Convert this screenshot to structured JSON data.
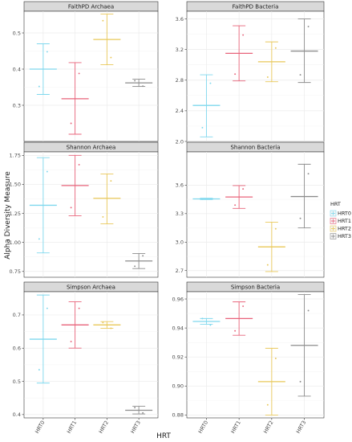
{
  "figure": {
    "xlabel": "HRT",
    "ylabel": "Alpha Diversity Measure",
    "legend": {
      "title": "HRT",
      "placement": "right",
      "items": [
        {
          "label": "HRT0",
          "color": "#7fd8ee"
        },
        {
          "label": "HRT1",
          "color": "#e8637a"
        },
        {
          "label": "HRT2",
          "color": "#e9c85a"
        },
        {
          "label": "HRT3",
          "color": "#8c8c8c"
        }
      ]
    }
  },
  "chart_data": [
    {
      "type": "scatter",
      "title": "FaithPD Archaea",
      "categories": [
        "HRT0",
        "HRT1",
        "HRT2",
        "HRT3"
      ],
      "ylim": [
        0.2,
        0.56
      ],
      "yticks": [
        0.3,
        0.4,
        0.5
      ],
      "ytick_labels": [
        "0.3",
        "0.4",
        "0.5"
      ],
      "series": [
        {
          "category": "HRT0",
          "mean": 0.4,
          "lower": 0.33,
          "upper": 0.47,
          "points": [
            0.448,
            0.352
          ]
        },
        {
          "category": "HRT1",
          "mean": 0.318,
          "lower": 0.22,
          "upper": 0.418,
          "points": [
            0.388,
            0.25
          ]
        },
        {
          "category": "HRT2",
          "mean": 0.482,
          "lower": 0.412,
          "upper": 0.552,
          "points": [
            0.432,
            0.534
          ]
        },
        {
          "category": "HRT3",
          "mean": 0.362,
          "lower": 0.352,
          "upper": 0.372,
          "points": [
            0.353,
            0.368
          ]
        }
      ]
    },
    {
      "type": "scatter",
      "title": "FaithPD Bacteria",
      "categories": [
        "HRT0",
        "HRT1",
        "HRT2",
        "HRT3"
      ],
      "ylim": [
        2.0,
        3.7
      ],
      "yticks": [
        2.0,
        2.4,
        2.8,
        3.2,
        3.6
      ],
      "ytick_labels": [
        "2.0",
        "2.4",
        "2.8",
        "3.2",
        "3.6"
      ],
      "series": [
        {
          "category": "HRT0",
          "mean": 2.47,
          "lower": 2.06,
          "upper": 2.87,
          "points": [
            2.76,
            2.18
          ]
        },
        {
          "category": "HRT1",
          "mean": 3.15,
          "lower": 2.79,
          "upper": 3.51,
          "points": [
            3.39,
            2.88
          ]
        },
        {
          "category": "HRT2",
          "mean": 3.04,
          "lower": 2.78,
          "upper": 3.3,
          "points": [
            3.22,
            2.84
          ]
        },
        {
          "category": "HRT3",
          "mean": 3.18,
          "lower": 2.77,
          "upper": 3.6,
          "points": [
            3.5,
            2.87
          ]
        }
      ]
    },
    {
      "type": "scatter",
      "title": "Shannon Archaea",
      "categories": [
        "HRT0",
        "HRT1",
        "HRT2",
        "HRT3"
      ],
      "ylim": [
        0.7,
        1.78
      ],
      "yticks": [
        0.75,
        1.0,
        1.25,
        1.5,
        1.75
      ],
      "ytick_labels": [
        "0.75",
        "1.00",
        "1.25",
        "1.50",
        "1.75"
      ],
      "series": [
        {
          "category": "HRT0",
          "mean": 1.32,
          "lower": 0.91,
          "upper": 1.73,
          "points": [
            1.61,
            1.03
          ]
        },
        {
          "category": "HRT1",
          "mean": 1.49,
          "lower": 1.23,
          "upper": 1.75,
          "points": [
            1.67,
            1.3
          ]
        },
        {
          "category": "HRT2",
          "mean": 1.38,
          "lower": 1.16,
          "upper": 1.59,
          "points": [
            1.53,
            1.22
          ]
        },
        {
          "category": "HRT3",
          "mean": 0.84,
          "lower": 0.775,
          "upper": 0.905,
          "points": [
            0.885,
            0.795
          ]
        }
      ]
    },
    {
      "type": "scatter",
      "title": "Shannon Bacteria",
      "categories": [
        "HRT0",
        "HRT1",
        "HRT2",
        "HRT3"
      ],
      "ylim": [
        2.63,
        3.95
      ],
      "yticks": [
        2.7,
        3.0,
        3.3,
        3.6
      ],
      "ytick_labels": [
        "2.7",
        "3.0",
        "3.3",
        "3.6"
      ],
      "series": [
        {
          "category": "HRT0",
          "mean": 3.455,
          "lower": 3.448,
          "upper": 3.462,
          "points": [
            3.457,
            3.453
          ]
        },
        {
          "category": "HRT1",
          "mean": 3.475,
          "lower": 3.355,
          "upper": 3.595,
          "points": [
            3.56,
            3.39
          ]
        },
        {
          "category": "HRT2",
          "mean": 2.95,
          "lower": 2.69,
          "upper": 3.21,
          "points": [
            3.14,
            2.76
          ]
        },
        {
          "category": "HRT3",
          "mean": 3.48,
          "lower": 3.15,
          "upper": 3.82,
          "points": [
            3.72,
            3.25
          ]
        }
      ]
    },
    {
      "type": "scatter",
      "title": "Simpson Archaea",
      "categories": [
        "HRT0",
        "HRT1",
        "HRT2",
        "HRT3"
      ],
      "ylim": [
        0.39,
        0.77
      ],
      "yticks": [
        0.4,
        0.5,
        0.6,
        0.7
      ],
      "ytick_labels": [
        "0.4",
        "0.5",
        "0.6",
        "0.7"
      ],
      "series": [
        {
          "category": "HRT0",
          "mean": 0.627,
          "lower": 0.495,
          "upper": 0.76,
          "points": [
            0.72,
            0.535
          ]
        },
        {
          "category": "HRT1",
          "mean": 0.67,
          "lower": 0.6,
          "upper": 0.74,
          "points": [
            0.72,
            0.62
          ]
        },
        {
          "category": "HRT2",
          "mean": 0.67,
          "lower": 0.66,
          "upper": 0.68,
          "points": [
            0.66,
            0.677
          ]
        },
        {
          "category": "HRT3",
          "mean": 0.413,
          "lower": 0.402,
          "upper": 0.425,
          "points": [
            0.405,
            0.421
          ]
        }
      ]
    },
    {
      "type": "scatter",
      "title": "Simpson Bacteria",
      "categories": [
        "HRT0",
        "HRT1",
        "HRT2",
        "HRT3"
      ],
      "ylim": [
        0.878,
        0.965
      ],
      "yticks": [
        0.88,
        0.9,
        0.92,
        0.94,
        0.96
      ],
      "ytick_labels": [
        "0.88",
        "0.90",
        "0.92",
        "0.94",
        "0.96"
      ],
      "series": [
        {
          "category": "HRT0",
          "mean": 0.9445,
          "lower": 0.9425,
          "upper": 0.9465,
          "points": [
            0.942,
            0.9465
          ]
        },
        {
          "category": "HRT1",
          "mean": 0.9465,
          "lower": 0.935,
          "upper": 0.958,
          "points": [
            0.955,
            0.938
          ]
        },
        {
          "category": "HRT2",
          "mean": 0.903,
          "lower": 0.88,
          "upper": 0.926,
          "points": [
            0.919,
            0.887
          ]
        },
        {
          "category": "HRT3",
          "mean": 0.928,
          "lower": 0.893,
          "upper": 0.963,
          "points": [
            0.952,
            0.903
          ]
        }
      ]
    }
  ]
}
